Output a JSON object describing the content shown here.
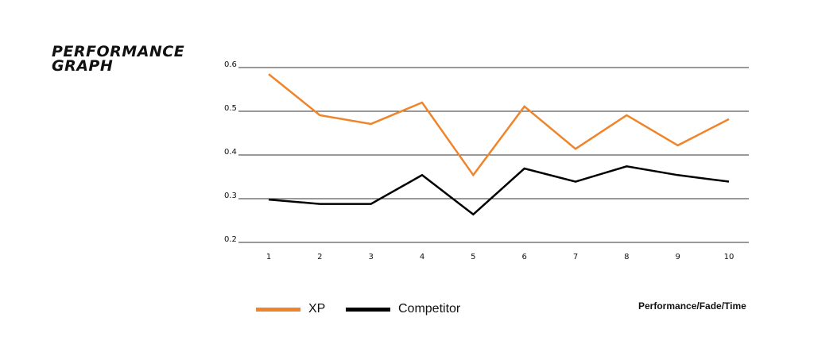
{
  "title_line1": "PERFORMANCE",
  "title_line2": "GRAPH",
  "note": "Performance/Fade/Time",
  "chart_data": {
    "type": "line",
    "x": [
      1,
      2,
      3,
      4,
      5,
      6,
      7,
      8,
      9,
      10
    ],
    "ylim": [
      0.2,
      0.6
    ],
    "yticks": [
      "0.2",
      "0.3",
      "0.4",
      "0.5",
      "0.6"
    ],
    "xticks": [
      "1",
      "2",
      "3",
      "4",
      "5",
      "6",
      "7",
      "8",
      "9",
      "10"
    ],
    "grid": true,
    "legend_placement": "bottom-left",
    "series": [
      {
        "name": "XP",
        "color": "#f0842a",
        "values": [
          0.585,
          0.491,
          0.471,
          0.52,
          0.354,
          0.511,
          0.414,
          0.491,
          0.422,
          0.482
        ]
      },
      {
        "name": "Competitor",
        "color": "#000000",
        "values": [
          0.298,
          0.288,
          0.288,
          0.354,
          0.264,
          0.369,
          0.339,
          0.374,
          0.354,
          0.339
        ]
      }
    ]
  }
}
